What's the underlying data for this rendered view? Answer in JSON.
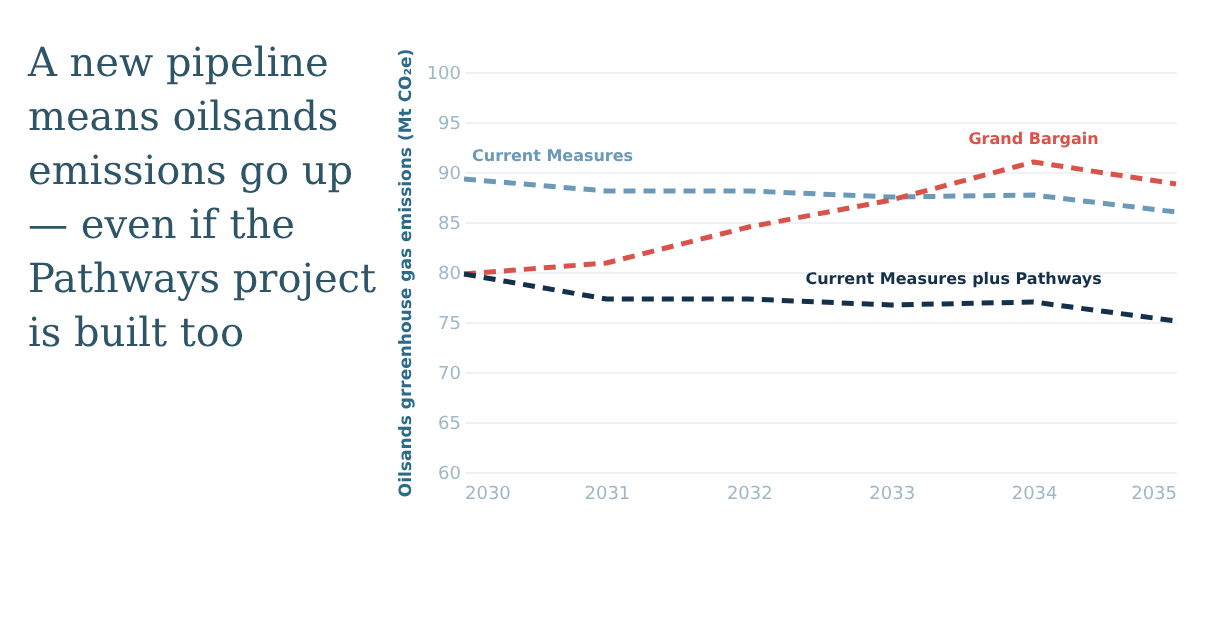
{
  "chart_data": {
    "type": "line",
    "title": "A new pipeline means oilsands emissions go up — even if the Pathways project is built too",
    "ylabel": "Oilsands grreenhouse gas emissions (Mt CO₂e)",
    "x": [
      2030,
      2031,
      2032,
      2033,
      2034,
      2035
    ],
    "series": [
      {
        "name": "Current Measures",
        "color": "#6a9ab8",
        "values": [
          89.3,
          88.1,
          88.1,
          87.5,
          87.7,
          86.0
        ]
      },
      {
        "name": "Grand Bargain",
        "color": "#d9534a",
        "values": [
          79.8,
          80.9,
          84.5,
          87.2,
          91.0,
          88.8
        ]
      },
      {
        "name": "Current Measures plus Pathways",
        "color": "#14304a",
        "values": [
          79.8,
          77.3,
          77.3,
          76.7,
          77.0,
          75.1
        ]
      }
    ],
    "xlim": [
      2030,
      2035
    ],
    "xticks": [
      2030,
      2031,
      2032,
      2033,
      2034,
      2035
    ],
    "ylim": [
      60,
      100
    ],
    "yticks": [
      60,
      65,
      70,
      75,
      80,
      85,
      90,
      95,
      100
    ],
    "grid": "y",
    "legend": false,
    "marker": "none",
    "line_style": "dashed"
  }
}
